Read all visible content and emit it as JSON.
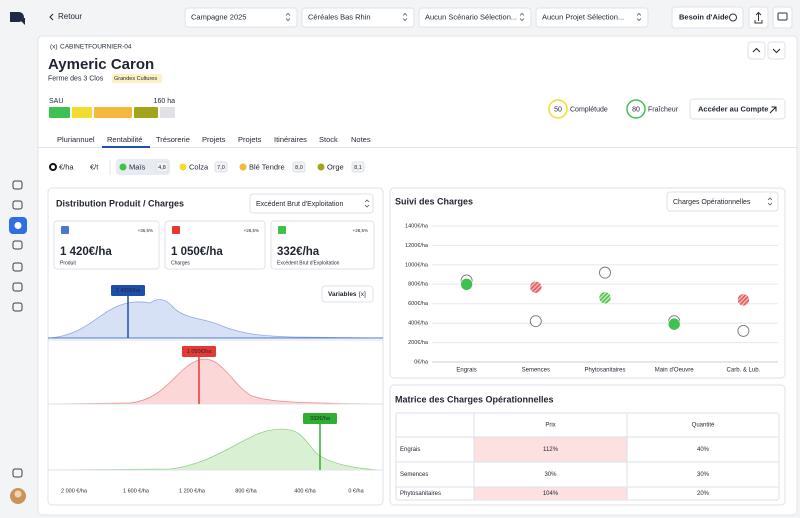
{
  "topbar": {
    "back": "Retour",
    "selects": [
      "Campagne 2025",
      "Céréales Bas Rhin",
      "Aucun Scénario Sélection...",
      "Aucun Projet Sélection..."
    ],
    "help": "Besoin d'Aide"
  },
  "header": {
    "id_icon": "(x)",
    "id": "CABINETFOURNIER-04",
    "name": "Aymeric Caron",
    "farm": "Ferme des 3 Clos",
    "badge": "Grandes Cultures",
    "sau_label": "SAU",
    "sau_value": "160 ha",
    "completude": {
      "score": 50,
      "label": "Complétude"
    },
    "fraicheur": {
      "score": 80,
      "label": "Fraîcheur"
    },
    "account_button": "Accéder au Compte"
  },
  "tabs": [
    "Pluriannuel",
    "Rentabilité",
    "Trésorerie",
    "Projets",
    "Projets",
    "Itinéraires",
    "Stock",
    "Notes"
  ],
  "units": [
    "€/ha",
    "€/t"
  ],
  "crops": [
    {
      "name": "Maïs",
      "value": "4,8",
      "color": "#3ec150"
    },
    {
      "name": "Colza",
      "value": "7,0",
      "color": "#f2dc2e"
    },
    {
      "name": "Blé Tendre",
      "value": "8,0",
      "color": "#f5b83b"
    },
    {
      "name": "Orge",
      "value": "8,1",
      "color": "#a3a31c"
    }
  ],
  "distribution": {
    "title": "Distribution Produit / Charges",
    "select": "Excédent Brut d'Exploitation",
    "cards": [
      {
        "color": "#4a78d0",
        "change": "+36,5%",
        "value": "1 420€/ha",
        "label": "Produit"
      },
      {
        "color": "#e53935",
        "change": "+28,5%",
        "value": "1 050€/ha",
        "label": "Charges"
      },
      {
        "color": "#43c043",
        "change": "+28,5%",
        "value": "332€/ha",
        "label": "Excédent Brut d'Exploitation"
      }
    ],
    "variables_button": "Variables",
    "variables_icon": "[x]",
    "axis_labels": [
      "2 000 €/ha",
      "1 600 €/ha",
      "1 200 €/ha",
      "800 €/ha",
      "400 €/ha",
      "0 €/ha"
    ]
  },
  "suivi": {
    "select": "Charges Opérationnelles"
  },
  "chart_data": {
    "type": "dot",
    "title": "Suivi des Charges",
    "categories": [
      "Engrais",
      "Semences",
      "Phytosanitaires",
      "Main d'Oeuvre",
      "Carb. & Lub."
    ],
    "ylim": [
      0,
      1400
    ],
    "yticks": [
      {
        "value": 0,
        "label": "0€/ha"
      },
      {
        "value": 200,
        "label": "200€/ha"
      },
      {
        "value": 400,
        "label": "400€/ha"
      },
      {
        "value": 600,
        "label": "600€/ha"
      },
      {
        "value": 800,
        "label": "800€/ha"
      },
      {
        "value": 1000,
        "label": "1000€/ha"
      },
      {
        "value": 1200,
        "label": "1200€/ha"
      },
      {
        "value": 1400,
        "label": "1400€/ha"
      }
    ],
    "grid": true,
    "series": [
      {
        "color": "#777777",
        "values": [
          840,
          420,
          920,
          420,
          320
        ]
      },
      {
        "colors": [
          "#3ec150",
          "#e86b6b",
          "#6fd36a",
          "#3ec150",
          "#e86b6b"
        ],
        "hatched": [
          false,
          true,
          true,
          false,
          true
        ],
        "values": [
          800,
          770,
          660,
          390,
          640
        ]
      }
    ]
  },
  "matrix": {
    "title": "Matrice des Charges Opérationnelles",
    "columns": [
      "Prix",
      "Quantité"
    ],
    "rows": [
      {
        "label": "Engrais",
        "cells": [
          "112%",
          "40%"
        ]
      },
      {
        "label": "Semences",
        "cells": [
          "30%",
          "30%"
        ]
      },
      {
        "label": "Phytosanitaires",
        "cells": [
          "104%",
          "20%"
        ]
      }
    ]
  }
}
